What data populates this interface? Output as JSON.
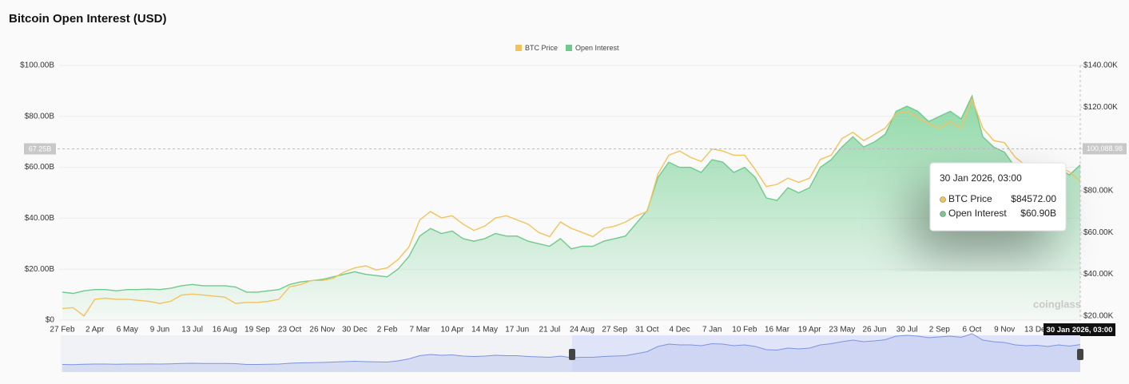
{
  "chart_data": {
    "type": "line",
    "title": "Bitcoin Open Interest (USD)",
    "watermark": "coinglass",
    "categories": [
      "27 Feb",
      null,
      null,
      "2 Apr",
      null,
      null,
      "6 May",
      null,
      null,
      "9 Jun",
      null,
      null,
      "13 Jul",
      null,
      null,
      "16 Aug",
      null,
      null,
      "19 Sep",
      null,
      null,
      "23 Oct",
      null,
      null,
      "26 Nov",
      null,
      null,
      "30 Dec",
      null,
      null,
      "2 Feb",
      null,
      null,
      "7 Mar",
      null,
      null,
      "10 Apr",
      null,
      null,
      "14 May",
      null,
      null,
      "17 Jun",
      null,
      null,
      "21 Jul",
      null,
      null,
      "24 Aug",
      null,
      null,
      "27 Sep",
      null,
      null,
      "31 Oct",
      null,
      null,
      "4 Dec",
      null,
      null,
      "7 Jan",
      null,
      null,
      "10 Feb",
      null,
      null,
      "16 Mar",
      null,
      null,
      "19 Apr",
      null,
      null,
      "23 May",
      null,
      null,
      "26 Jun",
      null,
      null,
      "30 Jul",
      null,
      null,
      "2 Sep",
      null,
      null,
      "6 Oct",
      null,
      null,
      "9 Nov",
      null,
      null,
      "13 Dec",
      null,
      null,
      null,
      null
    ],
    "series": [
      {
        "name": "BTC Price",
        "color": "#f2c35b",
        "axis": "y2",
        "values": [
          23.5,
          24,
          20,
          28,
          28.5,
          28,
          28,
          27.5,
          27,
          26,
          27,
          30,
          30.5,
          30,
          29.5,
          29,
          26,
          26.5,
          26.5,
          27,
          28,
          34,
          35,
          37,
          37,
          38,
          41,
          43,
          44,
          42,
          43,
          47,
          53,
          66,
          70,
          67,
          68,
          64,
          61,
          63,
          67,
          68,
          66,
          64,
          60,
          58,
          65,
          62,
          60,
          58,
          62,
          63,
          65,
          68,
          70,
          88,
          97,
          99,
          96,
          94,
          100,
          99,
          97,
          97,
          90,
          82,
          83,
          86,
          84,
          86,
          95,
          97,
          105,
          108,
          104,
          107,
          110,
          117,
          118,
          115,
          112,
          110,
          113,
          110,
          124,
          110,
          104,
          103,
          96,
          92,
          90,
          88,
          92,
          89,
          84.572
        ]
      },
      {
        "name": "Open Interest",
        "color": "#6fca8c",
        "values": [
          11,
          10.5,
          11.5,
          12,
          12,
          11.5,
          12,
          12,
          12.2,
          12,
          12.5,
          13.5,
          14,
          13.5,
          13.5,
          13.5,
          13,
          11,
          11,
          11.5,
          12,
          14,
          15,
          15.5,
          16,
          17,
          18,
          19,
          18,
          17.5,
          17,
          20,
          25,
          33,
          36,
          34,
          35,
          32,
          31,
          32,
          34,
          33,
          33,
          31,
          30,
          29,
          32,
          28,
          29,
          29,
          31,
          32,
          33,
          38,
          43,
          56,
          62,
          60,
          60,
          58,
          63,
          62,
          58,
          60,
          56,
          48,
          47,
          52,
          50,
          52,
          60,
          63,
          68,
          72,
          68,
          70,
          73,
          82,
          84,
          82,
          78,
          80,
          82,
          79,
          88,
          72,
          68,
          66,
          60,
          58,
          59,
          56,
          60,
          57,
          60.9
        ]
      }
    ],
    "ylim": [
      0,
      100
    ],
    "yticks": [
      {
        "value": 0,
        "label": "$0"
      },
      {
        "value": 20,
        "label": "$20.00B"
      },
      {
        "value": 40,
        "label": "$40.00B"
      },
      {
        "value": 60,
        "label": "$60.00B"
      },
      {
        "value": 80,
        "label": "$80.00B"
      },
      {
        "value": 100,
        "label": "$100.00B"
      }
    ],
    "y2lim": [
      18,
      140
    ],
    "y2ticks": [
      {
        "value": 20,
        "label": "$20.00K"
      },
      {
        "value": 40,
        "label": "$40.00K"
      },
      {
        "value": 60,
        "label": "$60.00K"
      },
      {
        "value": 80,
        "label": "$80.00K"
      },
      {
        "value": 100,
        "label": "$100.00K"
      },
      {
        "value": 120,
        "label": "$120.00K"
      },
      {
        "value": 140,
        "label": "$140.00K"
      }
    ],
    "grid": true,
    "legend": "top",
    "crosshair": {
      "x_label": "30 Jan 2026, 03:00",
      "y": {
        "value": 67.25,
        "label": "67.25B"
      },
      "y2": {
        "value": 100.08898,
        "label": "100,088.98"
      }
    },
    "tooltip": {
      "title": "30 Jan 2026, 03:00",
      "items": [
        {
          "value": 84572,
          "label": "$84572.00"
        },
        {
          "value": 60.9,
          "label": "$60.90B"
        }
      ]
    }
  }
}
